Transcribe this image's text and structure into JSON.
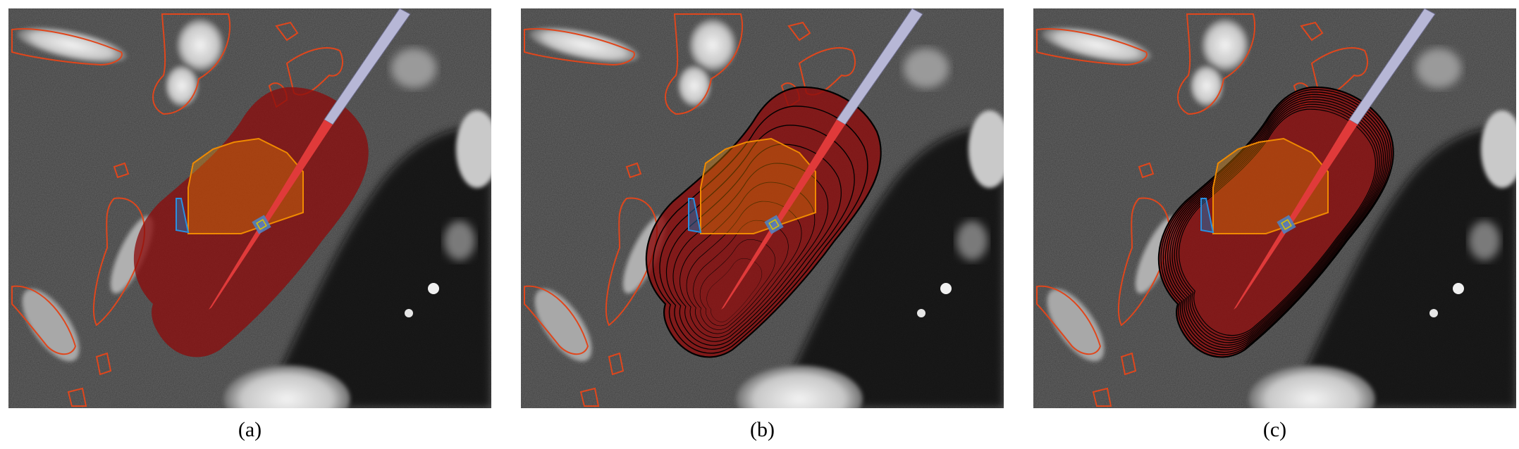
{
  "figure": {
    "panels": [
      {
        "id": "a",
        "caption": "(a)",
        "contour_levels": 0
      },
      {
        "id": "b",
        "caption": "(b)",
        "contour_levels": 9
      },
      {
        "id": "c",
        "caption": "(c)",
        "contour_levels": 9
      }
    ]
  },
  "colors": {
    "ablation_zone": "#8b0d0d",
    "needle_tip": "#e03a3a",
    "needle_shaft": "#b7b7d6",
    "tumor_outline": "#f08a00",
    "vessel_outline": "#e0461c",
    "target_marker": "#4a86c8",
    "isodose_lines": "#000000"
  },
  "icons": {
    "needle": "ablation-needle-icon",
    "target": "target-marker-icon"
  }
}
